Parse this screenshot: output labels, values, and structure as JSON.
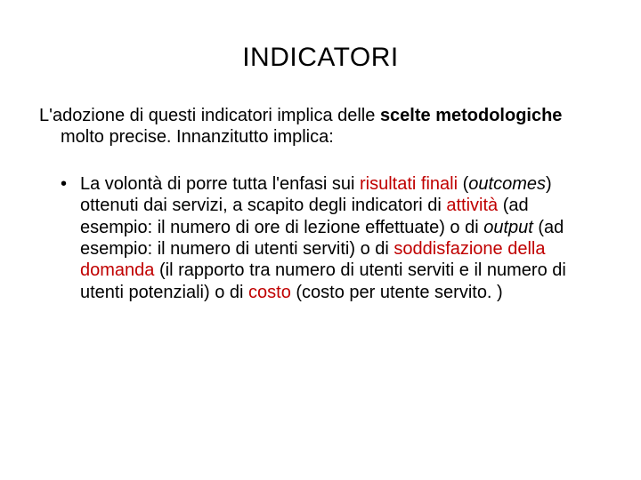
{
  "title": "INDICATORI",
  "intro": {
    "t1": "L'adozione di questi indicatori implica delle ",
    "t2": "scelte metodologiche",
    "t3": " molto precise. Innanzitutto implica:"
  },
  "bullet": {
    "t1": "La volontà di porre tutta l'enfasi sui ",
    "t2": "risultati finali",
    "t3": " (",
    "t4": "outcomes",
    "t5": ") ottenuti dai servizi, a scapito degli indicatori di ",
    "t6": "attività",
    "t7": " (ad esempio: il numero di ore di lezione effettuate) o di ",
    "t8": "output",
    "t9": " (ad esempio: il numero di utenti serviti) o di ",
    "t10": "soddisfazione della domanda",
    "t11": " (il rapporto tra numero di utenti serviti e il numero di utenti potenziali) o di ",
    "t12": "costo",
    "t13": " (costo per utente servito. )"
  },
  "colors": {
    "text": "#000000",
    "accent": "#c00000",
    "background": "#ffffff"
  }
}
